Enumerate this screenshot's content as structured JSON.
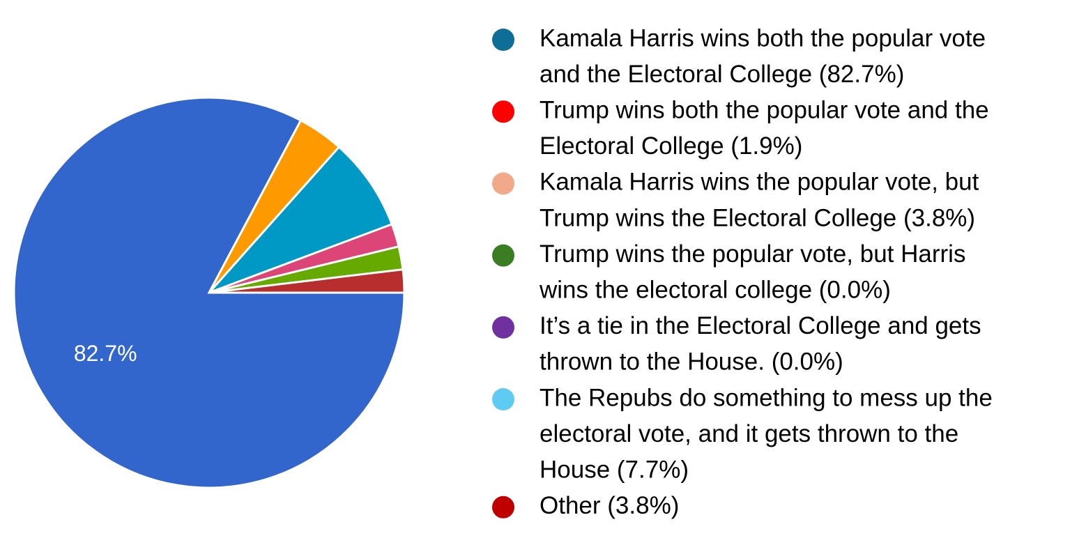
{
  "chart_data": {
    "type": "pie",
    "values": [
      82.7,
      3.8,
      7.7,
      1.9,
      1.9,
      1.9
    ],
    "colors": [
      "#3366cc",
      "#ff9900",
      "#0099c6",
      "#dd4477",
      "#66aa00",
      "#b82e2e"
    ],
    "value_labels": [
      "82.7%",
      null,
      null,
      null,
      null,
      null
    ],
    "legend": [
      {
        "lines": [
          "Kamala Harris wins both the popular vote",
          "and the Electoral College (82.7%)"
        ],
        "color": "#0f6e98"
      },
      {
        "lines": [
          "Trump wins both the popular vote and the",
          "Electoral College (1.9%)"
        ],
        "color": "#ff0000"
      },
      {
        "lines": [
          "Kamala Harris wins the popular vote, but",
          "Trump wins the Electoral College (3.8%)"
        ],
        "color": "#f2a98a"
      },
      {
        "lines": [
          "Trump wins the popular vote, but Harris",
          "wins the electoral college (0.0%)"
        ],
        "color": "#3a7d22"
      },
      {
        "lines": [
          "It’s a tie in the Electoral College and gets",
          "thrown to the House. (0.0%)"
        ],
        "color": "#7030a0"
      },
      {
        "lines": [
          "The Repubs do something to mess up the",
          "electoral vote, and it gets thrown to the",
          "House (7.7%)"
        ],
        "color": "#5fcbf3"
      },
      {
        "lines": [
          "Other (3.8%)"
        ],
        "color": "#c00000"
      }
    ]
  }
}
